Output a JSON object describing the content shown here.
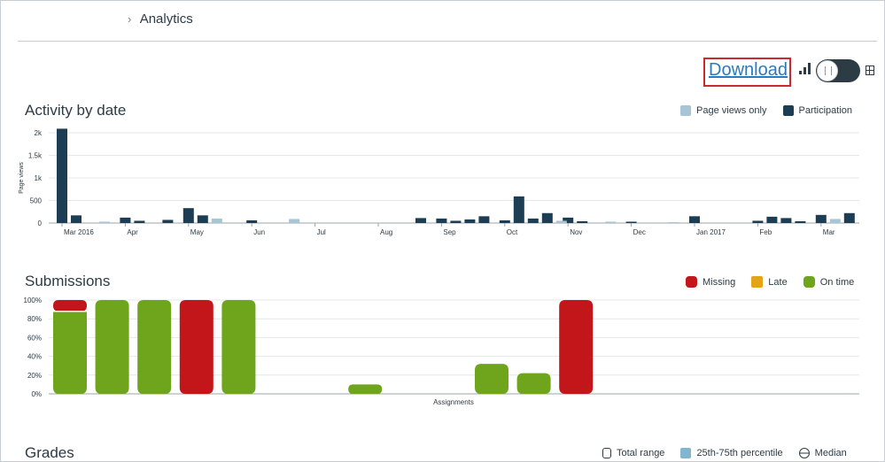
{
  "breadcrumb": {
    "current": "Analytics"
  },
  "toolbar": {
    "download_label": "Download"
  },
  "sections": {
    "activity": {
      "title": "Activity by date"
    },
    "submissions": {
      "title": "Submissions"
    },
    "grades": {
      "title": "Grades"
    }
  },
  "legends": {
    "activity": [
      {
        "label": "Page views only",
        "color": "#a7c5d5"
      },
      {
        "label": "Participation",
        "color": "#1c3d53"
      }
    ],
    "submissions": [
      {
        "label": "Missing",
        "color": "#c2161a"
      },
      {
        "label": "Late",
        "color": "#e4a417"
      },
      {
        "label": "On time",
        "color": "#6ea51c"
      }
    ],
    "grades": [
      {
        "label": "Total range"
      },
      {
        "label": "25th-75th percentile",
        "color": "#82b5d0"
      },
      {
        "label": "Median"
      }
    ]
  },
  "chart_data": [
    {
      "type": "bar",
      "title": "Activity by date",
      "ylabel": "Page views",
      "yticks": [
        "0",
        "500",
        "1k",
        "1.5k",
        "2k"
      ],
      "ylim": [
        0,
        2000
      ],
      "month_labels": [
        "Mar 2016",
        "Apr",
        "May",
        "Jun",
        "Jul",
        "Aug",
        "Sep",
        "Oct",
        "Nov",
        "Dec",
        "Jan 2017",
        "Feb",
        "Mar"
      ],
      "series": [
        {
          "name": "Participation",
          "color": "#1c3d53",
          "x": [
            "Mar 2016 w1",
            "Mar 2016 w2",
            "Apr w1",
            "Apr w2",
            "Apr w4",
            "May w1",
            "May w2",
            "Jun w1",
            "Aug w4",
            "Sep w1",
            "Sep w2",
            "Sep w3",
            "Sep w4",
            "Oct w1",
            "Oct w2",
            "Oct w3",
            "Oct w4",
            "Nov w1",
            "Nov w2",
            "Dec w1",
            "Jan 2017 w1",
            "Feb w1",
            "Feb w2",
            "Feb w3",
            "Feb w4",
            "Mar w1",
            "Mar w3"
          ],
          "values": [
            2090,
            170,
            120,
            50,
            70,
            330,
            170,
            60,
            110,
            100,
            50,
            80,
            150,
            60,
            590,
            100,
            220,
            120,
            40,
            30,
            150,
            50,
            140,
            110,
            40,
            180,
            220
          ]
        },
        {
          "name": "Page views only",
          "color": "#a7c5d5",
          "x": [
            "Mar 2016 w4",
            "May w3",
            "Jun w4",
            "Oct w5",
            "Nov w4",
            "Dec w4",
            "Mar w2"
          ],
          "values": [
            30,
            100,
            90,
            50,
            30,
            20,
            90
          ]
        }
      ]
    },
    {
      "type": "bar",
      "title": "Submissions",
      "xlabel": "Assignments",
      "yticks": [
        "0%",
        "20%",
        "40%",
        "60%",
        "80%",
        "100%"
      ],
      "ylim": [
        0,
        100
      ],
      "assignments": [
        {
          "on_time": 88,
          "late": 0,
          "missing": 12
        },
        {
          "on_time": 100,
          "late": 0,
          "missing": 0
        },
        {
          "on_time": 100,
          "late": 0,
          "missing": 0
        },
        {
          "on_time": 0,
          "late": 0,
          "missing": 100
        },
        {
          "on_time": 100,
          "late": 0,
          "missing": 0
        },
        {
          "on_time": 0,
          "late": 0,
          "missing": 0
        },
        {
          "on_time": 0,
          "late": 0,
          "missing": 0
        },
        {
          "on_time": 10,
          "late": 0,
          "missing": 0
        },
        {
          "on_time": 0,
          "late": 0,
          "missing": 0
        },
        {
          "on_time": 0,
          "late": 0,
          "missing": 0
        },
        {
          "on_time": 32,
          "late": 0,
          "missing": 0
        },
        {
          "on_time": 22,
          "late": 0,
          "missing": 0
        },
        {
          "on_time": 0,
          "late": 0,
          "missing": 100
        }
      ]
    }
  ]
}
